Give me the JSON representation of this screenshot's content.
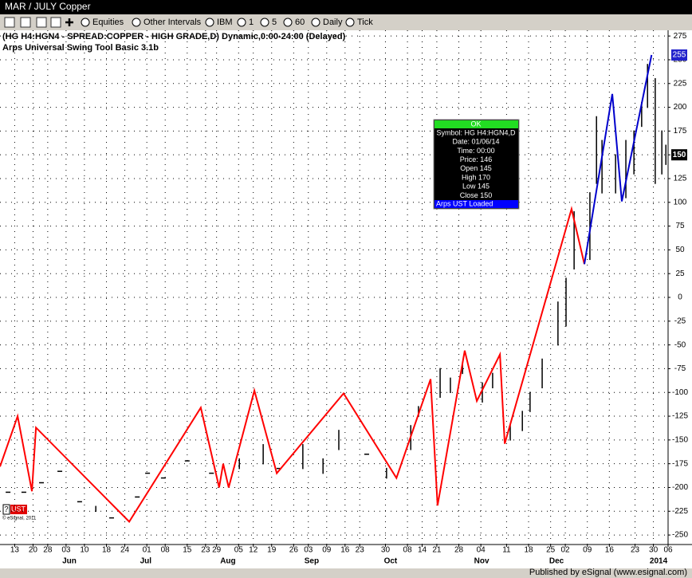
{
  "window": {
    "title": "MAR / JULY Copper"
  },
  "toolbar": {
    "items": [
      "Equities",
      "Other Intervals",
      "IBM",
      "1",
      "5",
      "60",
      "Daily",
      "Tick"
    ]
  },
  "chart_data": {
    "type": "ohlc",
    "title": "(HG H4:HGN4 - SPREAD:COPPER - HIGH GRADE,D) Dynamic,0:00-24:00 (Delayed)",
    "subtitle": "Arps Universal Swing Tool Basic 3.1b",
    "xlim": [
      0,
      182
    ],
    "ylim": [
      -260,
      281
    ],
    "grid": true,
    "xticks": [
      {
        "value": 4,
        "label": "13"
      },
      {
        "value": 9,
        "label": "20"
      },
      {
        "value": 13,
        "label": "28"
      },
      {
        "value": 18,
        "label": "03"
      },
      {
        "value": 23,
        "label": "10"
      },
      {
        "value": 29,
        "label": "18"
      },
      {
        "value": 34,
        "label": "24"
      },
      {
        "value": 40,
        "label": "01"
      },
      {
        "value": 45,
        "label": "08"
      },
      {
        "value": 51,
        "label": "15"
      },
      {
        "value": 56,
        "label": "23"
      },
      {
        "value": 59,
        "label": "29"
      },
      {
        "value": 65,
        "label": "05"
      },
      {
        "value": 69,
        "label": "12"
      },
      {
        "value": 74,
        "label": "19"
      },
      {
        "value": 80,
        "label": "26"
      },
      {
        "value": 84,
        "label": "03"
      },
      {
        "value": 89,
        "label": "09"
      },
      {
        "value": 94,
        "label": "16"
      },
      {
        "value": 98,
        "label": "23"
      },
      {
        "value": 105,
        "label": "30"
      },
      {
        "value": 111,
        "label": "08"
      },
      {
        "value": 115,
        "label": "14"
      },
      {
        "value": 119,
        "label": "21"
      },
      {
        "value": 125,
        "label": "28"
      },
      {
        "value": 131,
        "label": "04"
      },
      {
        "value": 138,
        "label": "11"
      },
      {
        "value": 144,
        "label": "18"
      },
      {
        "value": 150,
        "label": "25"
      },
      {
        "value": 154,
        "label": "02"
      },
      {
        "value": 160,
        "label": "09"
      },
      {
        "value": 166,
        "label": "16"
      },
      {
        "value": 173,
        "label": "23"
      },
      {
        "value": 178,
        "label": "30"
      },
      {
        "value": 182,
        "label": "06"
      }
    ],
    "month_ticks": [
      {
        "value": 18.9,
        "label": "Jun"
      },
      {
        "value": 39.7,
        "label": "Jul"
      },
      {
        "value": 62.1,
        "label": "Aug"
      },
      {
        "value": 84.9,
        "label": "Sep"
      },
      {
        "value": 106.4,
        "label": "Oct"
      },
      {
        "value": 131.2,
        "label": "Nov"
      },
      {
        "value": 151.6,
        "label": "Dec"
      },
      {
        "value": 179.4,
        "label": "2014"
      }
    ],
    "yticks": [
      275,
      250,
      225,
      200,
      175,
      150,
      125,
      100,
      75,
      50,
      25,
      0,
      -25,
      -50,
      -75,
      -100,
      -125,
      -150,
      -175,
      -200,
      -225,
      -250
    ],
    "high_value": 255,
    "last_value": 150,
    "bars": {
      "color": "#000000",
      "x": [
        2.2,
        6.5,
        11.3,
        16.3,
        21.7,
        26.1,
        30.4,
        37.4,
        40.2,
        44.5,
        51.0,
        57.6,
        65.2,
        71.7,
        76.0,
        82.5,
        88.0,
        92.3,
        99.9,
        105.3,
        111.9,
        114.0,
        119.9,
        122.7,
        126.0,
        131.4,
        134.2,
        139.0,
        142.3,
        144.4,
        147.7,
        152.0,
        154.2,
        156.4,
        160.7,
        162.5,
        164.0,
        167.7,
        170.5,
        172.7,
        174.8,
        176.4,
        178.5,
        180.3,
        181.4
      ],
      "high": [
        -205,
        -205,
        -195,
        -183,
        -215,
        -220,
        -232,
        -210,
        -185,
        -190,
        -172,
        -185,
        -170,
        -155,
        -180,
        -155,
        -170,
        -140,
        -165,
        -180,
        -135,
        -115,
        -75,
        -85,
        -70,
        -90,
        -80,
        -135,
        -120,
        -100,
        -65,
        -5,
        20,
        90,
        110,
        190,
        165,
        150,
        165,
        175,
        205,
        245,
        230,
        175,
        160
      ],
      "low": [
        -205,
        -205,
        -195,
        -183,
        -215,
        -225,
        -232,
        -210,
        -185,
        -190,
        -172,
        -185,
        -180,
        -175,
        -180,
        -180,
        -185,
        -160,
        -165,
        -190,
        -160,
        -125,
        -105,
        -100,
        -80,
        -110,
        -95,
        -150,
        -140,
        -120,
        -95,
        -50,
        -30,
        30,
        40,
        120,
        110,
        110,
        105,
        130,
        180,
        200,
        120,
        130,
        140
      ]
    },
    "series": [
      {
        "color": "#ff0000",
        "x": [
          0,
          4.8,
          8.7,
          9.8,
          35.2,
          54.7,
          59.7,
          60.8,
          62.3,
          69.3,
          75.4,
          93.6,
          108,
          117.3,
          119.2,
          126.6,
          129.9,
          136.2,
          137.5,
          155.7,
          159.2
        ],
        "values": [
          -178,
          -125,
          -204,
          -137,
          -236,
          -116,
          -200,
          -175,
          -200,
          -98,
          -185,
          -101,
          -190,
          -86,
          -219,
          -56,
          -109,
          -60,
          -154,
          93,
          35
        ]
      },
      {
        "color": "#0000cc",
        "x": [
          159.2,
          166.8,
          169.4,
          177.5
        ],
        "values": [
          35,
          214,
          101,
          255
        ]
      }
    ]
  },
  "info_box": {
    "header": "OK",
    "lines": [
      "Symbol: HG H4:HGN4,D",
      "Date: 01/06/14",
      "Time: 00:00",
      "Price: 146",
      "Open 145",
      "High 170",
      "Low 145",
      "Close 150"
    ],
    "footer": "Arps UST Loaded"
  },
  "footer": {
    "help": "?",
    "indicator": "UST",
    "copyright": "© eSignal, 2011",
    "published": "Published by eSignal (www.esignal.com)"
  }
}
